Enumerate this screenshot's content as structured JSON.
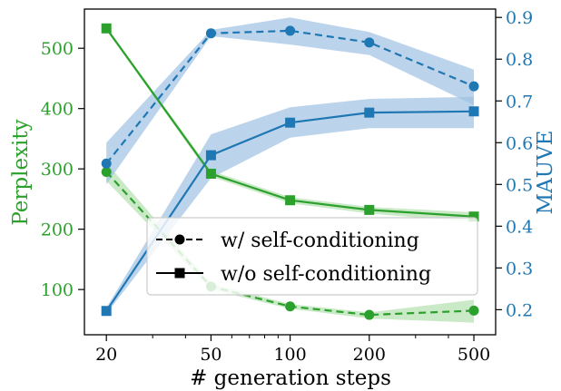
{
  "chart_data": {
    "type": "line",
    "xlabel": "# generation steps",
    "xscale": "log",
    "x": [
      20,
      50,
      100,
      200,
      500
    ],
    "x_ticks": [
      "20",
      "50",
      "100",
      "200",
      "500"
    ],
    "left_axis": {
      "label": "Perplexity",
      "color": "#2ca02c",
      "ylim": [
        25,
        565
      ],
      "ticks": [
        100,
        200,
        300,
        400,
        500
      ]
    },
    "right_axis": {
      "label": "MAUVE",
      "color": "#1f77b4",
      "ylim": [
        0.14,
        0.92
      ],
      "ticks": [
        0.2,
        0.3,
        0.4,
        0.5,
        0.6,
        0.7,
        0.8,
        0.9
      ]
    },
    "series": [
      {
        "axis": "left",
        "style": "dashed",
        "marker": "circle",
        "color": "#2ca02c",
        "values": [
          295,
          105,
          72,
          58,
          65
        ],
        "band_low": [
          280,
          100,
          68,
          52,
          45
        ],
        "band_high": [
          310,
          110,
          76,
          62,
          83
        ]
      },
      {
        "axis": "left",
        "style": "solid",
        "marker": "square",
        "color": "#2ca02c",
        "values": [
          533,
          292,
          248,
          232,
          221
        ],
        "band_low": [
          530,
          287,
          243,
          226,
          212
        ],
        "band_high": [
          536,
          297,
          253,
          237,
          228
        ]
      },
      {
        "axis": "right",
        "style": "dashed",
        "marker": "circle",
        "color": "#1f77b4",
        "values": [
          0.55,
          0.862,
          0.868,
          0.84,
          0.735
        ],
        "band_low": [
          0.5,
          0.855,
          0.835,
          0.81,
          0.69
        ],
        "band_high": [
          0.6,
          0.87,
          0.9,
          0.865,
          0.775
        ]
      },
      {
        "axis": "right",
        "style": "solid",
        "marker": "square",
        "color": "#1f77b4",
        "values": [
          0.197,
          0.57,
          0.648,
          0.672,
          0.675
        ],
        "band_low": [
          0.19,
          0.515,
          0.612,
          0.635,
          0.635
        ],
        "band_high": [
          0.205,
          0.62,
          0.685,
          0.705,
          0.71
        ]
      }
    ],
    "legend": {
      "placement": "lower-center",
      "entries": [
        {
          "label": "w/ self-conditioning",
          "style": "dashed",
          "marker": "circle"
        },
        {
          "label": "w/o self-conditioning",
          "style": "solid",
          "marker": "square"
        }
      ]
    },
    "band_color": "#9ec2e2",
    "band_color_green": "#a6dba0",
    "frame_color": "#000000"
  }
}
